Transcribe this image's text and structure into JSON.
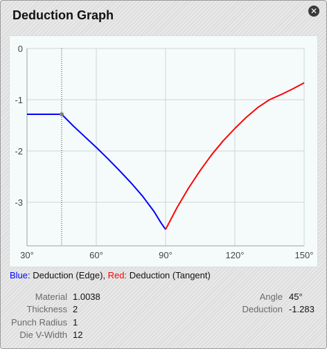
{
  "window": {
    "title": "Deduction Graph"
  },
  "legend": {
    "blue_prefix": "Blue:",
    "blue_text": " Deduction (Edge),",
    "red_prefix": "Red:",
    "red_text": " Deduction (Tangent)"
  },
  "info_left": [
    {
      "label": "Material",
      "value": "1.0038"
    },
    {
      "label": "Thickness",
      "value": "2"
    },
    {
      "label": "Punch Radius",
      "value": "1"
    },
    {
      "label": "Die V-Width",
      "value": "12"
    }
  ],
  "info_right": [
    {
      "label": "Angle",
      "value": "45°"
    },
    {
      "label": "Deduction",
      "value": "-1.283"
    }
  ],
  "colors": {
    "edge": "#0000ff",
    "tangent": "#ff0000",
    "grid": "#cfd5d5",
    "marker": "#808080"
  },
  "chart_data": {
    "type": "line",
    "title": "",
    "xlabel": "",
    "ylabel": "",
    "xlim": [
      30,
      150
    ],
    "ylim": [
      -3.85,
      0
    ],
    "x_ticks": [
      "30°",
      "60°",
      "90°",
      "120°",
      "150°"
    ],
    "y_ticks": [
      "0",
      "-1",
      "-2",
      "-3"
    ],
    "x_tick_values": [
      30,
      60,
      90,
      120,
      150
    ],
    "y_tick_values": [
      0,
      -1,
      -2,
      -3
    ],
    "marker": {
      "x": 45,
      "y": -1.283
    },
    "series": [
      {
        "name": "Deduction (Edge)",
        "color": "#0000ff",
        "x": [
          30,
          45,
          50,
          55,
          60,
          65,
          70,
          75,
          80,
          85,
          88,
          90
        ],
        "y": [
          -1.283,
          -1.283,
          -1.51,
          -1.72,
          -1.93,
          -2.15,
          -2.38,
          -2.62,
          -2.88,
          -3.18,
          -3.4,
          -3.53
        ]
      },
      {
        "name": "Deduction (Tangent)",
        "color": "#ff0000",
        "x": [
          90,
          95,
          100,
          105,
          110,
          115,
          120,
          125,
          130,
          135,
          140,
          145,
          150
        ],
        "y": [
          -3.53,
          -3.1,
          -2.72,
          -2.38,
          -2.07,
          -1.8,
          -1.56,
          -1.34,
          -1.15,
          -1.0,
          -0.9,
          -0.79,
          -0.67
        ]
      }
    ]
  }
}
